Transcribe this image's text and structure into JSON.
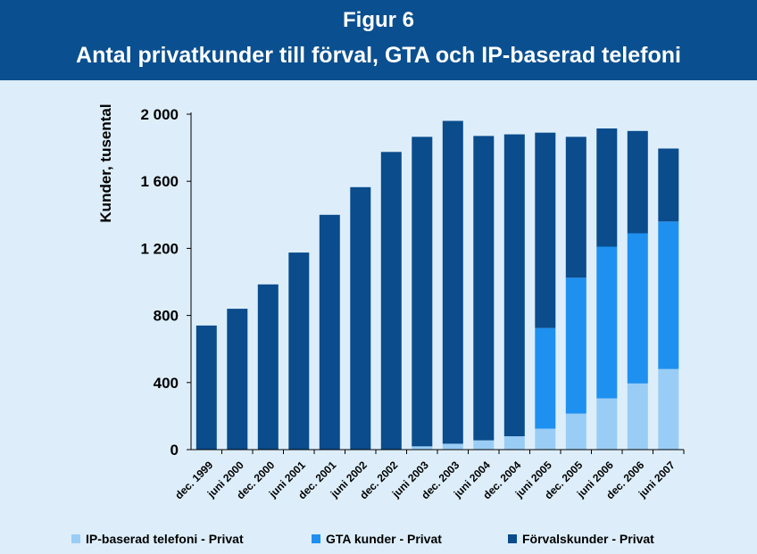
{
  "header": {
    "figure_label": "Figur 6",
    "title": "Antal privatkunder till förval, GTA och IP-baserad telefoni"
  },
  "colors": {
    "header_bg": "#0a4f8f",
    "background": "#ddeefa",
    "series": [
      "#99cdf5",
      "#1e90f0",
      "#0a4c8c"
    ]
  },
  "chart_data": {
    "type": "bar",
    "stacked": true,
    "title": "Antal privatkunder till förval, GTA och IP-baserad telefoni",
    "ylabel": "Kunder, tusental",
    "xlabel": "",
    "ylim": [
      0,
      2000
    ],
    "yticks": [
      0,
      400,
      800,
      1200,
      1600,
      2000
    ],
    "ytick_labels": [
      "0",
      "400",
      "800",
      "1 200",
      "1 600",
      "2 000"
    ],
    "grid": false,
    "legend_position": "bottom",
    "categories": [
      "dec. 1999",
      "juni 2000",
      "dec. 2000",
      "juni 2001",
      "dec. 2001",
      "juni 2002",
      "dec. 2002",
      "juni 2003",
      "dec. 2003",
      "juni 2004",
      "dec. 2004",
      "juni 2005",
      "dec. 2005",
      "juni 2006",
      "dec. 2006",
      "juni 2007"
    ],
    "series": [
      {
        "name": "IP-baserad telefoni - Privat",
        "values": [
          0,
          0,
          0,
          0,
          0,
          0,
          0,
          20,
          35,
          55,
          80,
          125,
          215,
          305,
          395,
          480
        ]
      },
      {
        "name": "GTA kunder - Privat",
        "values": [
          0,
          0,
          0,
          0,
          0,
          0,
          0,
          0,
          0,
          0,
          0,
          600,
          810,
          905,
          895,
          880
        ]
      },
      {
        "name": "Förvalskunder - Privat",
        "values": [
          740,
          840,
          985,
          1175,
          1400,
          1565,
          1775,
          1845,
          1925,
          1815,
          1800,
          1165,
          840,
          705,
          610,
          435
        ]
      }
    ]
  }
}
